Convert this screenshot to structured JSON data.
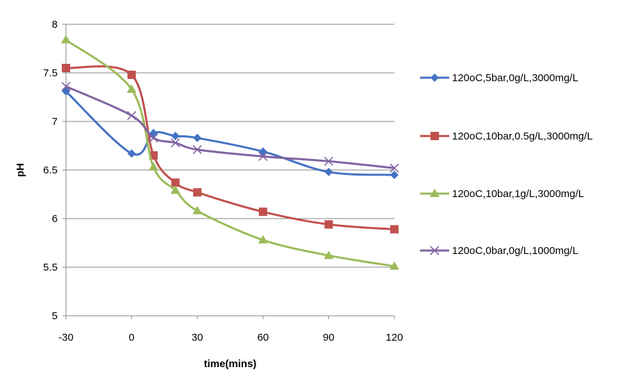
{
  "chart_data": {
    "type": "line",
    "title": "",
    "xlabel": "time(mins)",
    "ylabel": "pH",
    "x_ticks": [
      -30,
      0,
      30,
      60,
      90,
      120
    ],
    "y_ticks": [
      "5",
      "5.5",
      "6",
      "6.5",
      "7",
      "7.5",
      "8"
    ],
    "xlim": [
      -30,
      120
    ],
    "ylim": [
      5,
      8
    ],
    "grid": "horizontal",
    "legend_position": "right",
    "x": [
      -30,
      0,
      10,
      20,
      30,
      60,
      90,
      120
    ],
    "series": [
      {
        "name": "120oC,5bar,0g/L,3000mg/L",
        "marker": "diamond",
        "color": "#4472C4",
        "values": [
          7.31,
          6.67,
          6.88,
          6.85,
          6.83,
          6.69,
          6.48,
          6.45
        ]
      },
      {
        "name": "120oC,10bar,0.5g/L,3000mg/L",
        "marker": "square",
        "color": "#C0504D",
        "values": [
          7.55,
          7.48,
          6.65,
          6.37,
          6.27,
          6.07,
          5.94,
          5.89
        ]
      },
      {
        "name": "120oC,10bar,1g/L,3000mg/L",
        "marker": "triangle",
        "color": "#9BBB59",
        "values": [
          7.84,
          7.33,
          6.53,
          6.29,
          6.08,
          5.78,
          5.62,
          5.51
        ]
      },
      {
        "name": "120oC,0bar,0g/L,1000mg/L",
        "marker": "x",
        "color": "#8064A2",
        "values": [
          7.36,
          7.06,
          6.83,
          6.78,
          6.71,
          6.64,
          6.59,
          6.52
        ]
      }
    ]
  }
}
